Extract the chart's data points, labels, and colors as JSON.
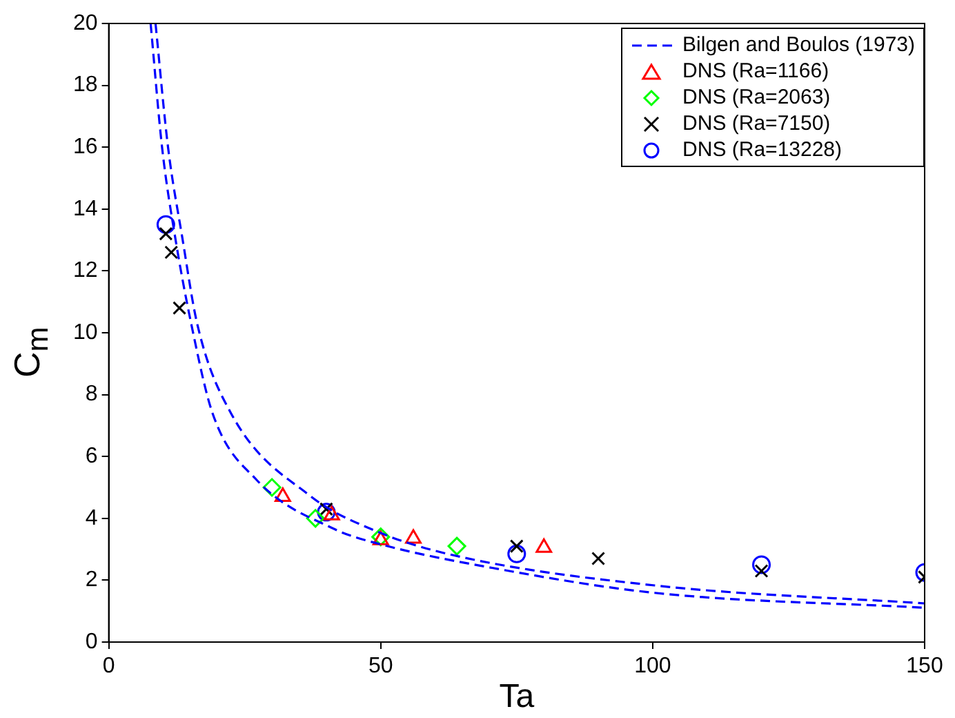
{
  "chart_data": {
    "type": "scatter",
    "xlabel": "Ta",
    "ylabel": "C$_{m}$",
    "xlim": [
      0,
      150
    ],
    "ylim": [
      0,
      20
    ],
    "xticks": [
      0,
      50,
      100,
      150
    ],
    "yticks": [
      0,
      2,
      4,
      6,
      8,
      10,
      12,
      14,
      16,
      18,
      20
    ],
    "legend": "top right",
    "series": [
      {
        "name": "Bilgen and Boulos (1973)",
        "type": "line",
        "line_style": "dashed",
        "marker": "none",
        "color": "#0000ff",
        "x": [
          8.6,
          10.9,
          13.5,
          16.3,
          22.5,
          37,
          49.1,
          62.8,
          100.4,
          150
        ],
        "values": [
          20,
          16,
          13.1,
          10.26,
          7.39,
          4.73,
          3.59,
          2.83,
          1.83,
          1.25
        ]
      },
      {
        "type": "line",
        "line_style": "dashed",
        "marker": "none",
        "color": "#0000ff",
        "x": [
          7.7,
          9.8,
          12.2,
          15.2,
          19.1,
          27.2,
          41.4,
          50,
          71.4,
          100.4,
          150
        ],
        "values": [
          20,
          16,
          13.1,
          10.26,
          7.39,
          5.24,
          3.66,
          3.16,
          2.37,
          1.59,
          1.11
        ]
      },
      {
        "name": "DNS (Ra=1166)",
        "type": "scatter",
        "marker": "triangle",
        "color": "#ff0000",
        "x": [
          32,
          41,
          50,
          56,
          80
        ],
        "values": [
          4.7,
          4.1,
          3.3,
          3.35,
          3.05
        ]
      },
      {
        "name": "DNS (Ra=2063)",
        "type": "scatter",
        "marker": "diamond",
        "color": "#00ff00",
        "x": [
          30,
          38,
          50,
          64
        ],
        "values": [
          5.0,
          4.0,
          3.4,
          3.1
        ]
      },
      {
        "name": "DNS (Ra=7150)",
        "type": "scatter",
        "marker": "cross",
        "color": "#000000",
        "x": [
          10.5,
          11.5,
          13,
          40,
          75,
          90,
          120,
          150
        ],
        "values": [
          13.2,
          12.6,
          10.8,
          4.3,
          3.1,
          2.7,
          2.3,
          2.1
        ]
      },
      {
        "name": "DNS (Ra=13228)",
        "type": "scatter",
        "marker": "circle",
        "color": "#0000ff",
        "x": [
          10.5,
          40,
          75,
          120,
          150
        ],
        "values": [
          13.5,
          4.2,
          2.85,
          2.5,
          2.25
        ]
      }
    ]
  }
}
